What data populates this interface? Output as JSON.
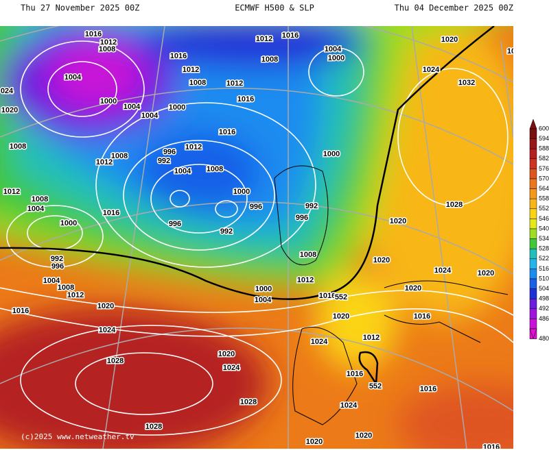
{
  "header": {
    "left": "Thu 27 November 2025 00Z",
    "center": "ECMWF H500 & SLP",
    "right": "Thu 04 December 2025 00Z"
  },
  "color_scale": [
    {
      "label": "600",
      "color": "#7a1010"
    },
    {
      "label": "594",
      "color": "#9a1818"
    },
    {
      "label": "588",
      "color": "#b52020"
    },
    {
      "label": "582",
      "color": "#cc3322"
    },
    {
      "label": "576",
      "color": "#df5520"
    },
    {
      "label": "570",
      "color": "#ec771a"
    },
    {
      "label": "564",
      "color": "#f39818"
    },
    {
      "label": "558",
      "color": "#f8b718"
    },
    {
      "label": "552",
      "color": "#fbd418"
    },
    {
      "label": "546",
      "color": "#e2e81c"
    },
    {
      "label": "540",
      "color": "#9fdc24"
    },
    {
      "label": "534",
      "color": "#3fc83a"
    },
    {
      "label": "528",
      "color": "#20c0b8"
    },
    {
      "label": "522",
      "color": "#22b4ea"
    },
    {
      "label": "516",
      "color": "#1a8cf0"
    },
    {
      "label": "510",
      "color": "#1860e8"
    },
    {
      "label": "504",
      "color": "#2030d8"
    },
    {
      "label": "498",
      "color": "#6a1ee0"
    },
    {
      "label": "492",
      "color": "#a014e0"
    },
    {
      "label": "486",
      "color": "#c812d8"
    },
    {
      "label": "480",
      "color": "#e010d0"
    }
  ],
  "isobar_labels": [
    "1016",
    "1012",
    "1008",
    "1016",
    "1012",
    "1016",
    "1004",
    "1000",
    "1020",
    "10",
    "1004",
    "1008",
    "1012",
    "1008",
    "1012",
    "1024",
    "1032",
    "024",
    "1000",
    "1004",
    "1000",
    "1016",
    "1020",
    "1004",
    "1016",
    "1008",
    "996",
    "1012",
    "1008",
    "992",
    "1012",
    "1004",
    "1008",
    "1000",
    "1012",
    "1000",
    "1008",
    "1004",
    "1028",
    "996",
    "992",
    "1016",
    "996",
    "1020",
    "1000",
    "996",
    "992",
    "1008",
    "1020",
    "992",
    "996",
    "1024",
    "1020",
    "1004",
    "1012",
    "1008",
    "1020",
    "1000",
    "1012",
    "1016",
    "552",
    "1004",
    "1020",
    "1016",
    "1020",
    "1016",
    "1024",
    "1024",
    "1012",
    "1028",
    "1020",
    "1024",
    "1016",
    "552",
    "1016",
    "1028",
    "1024",
    "1028",
    "1020",
    "1020",
    "1016"
  ],
  "credit": "(c)2025 www.netweather.tv"
}
